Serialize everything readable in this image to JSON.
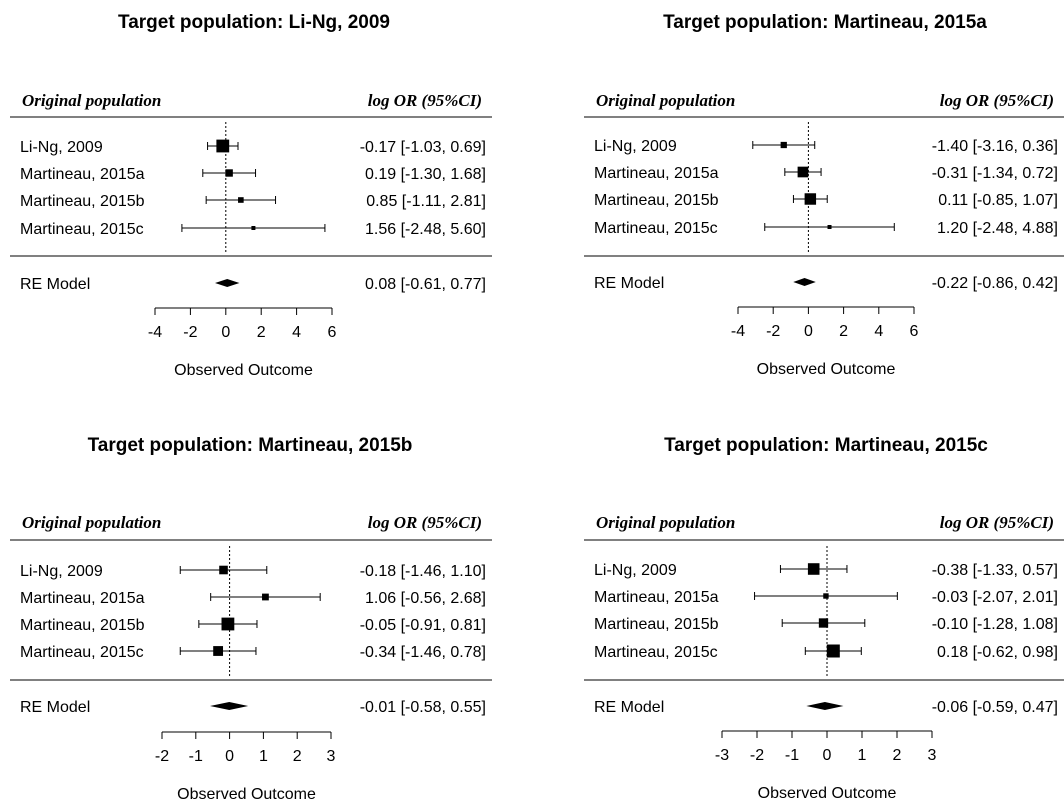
{
  "chart_data": [
    {
      "type": "forest",
      "title": "Target population: Li-Ng, 2009",
      "column_left_header": "Original population",
      "column_right_header": "log OR (95%CI)",
      "xlabel": "Observed Outcome",
      "xlim": [
        -4,
        6
      ],
      "xticks": [
        -4,
        -2,
        0,
        2,
        4,
        6
      ],
      "studies": [
        {
          "label": "Li-Ng, 2009",
          "estimate": -0.17,
          "lower": -1.03,
          "upper": 0.69,
          "text": "-0.17 [-1.03, 0.69]"
        },
        {
          "label": "Martineau, 2015a",
          "estimate": 0.19,
          "lower": -1.3,
          "upper": 1.68,
          "text": "0.19 [-1.30, 1.68]"
        },
        {
          "label": "Martineau, 2015b",
          "estimate": 0.85,
          "lower": -1.11,
          "upper": 2.81,
          "text": "0.85 [-1.11, 2.81]"
        },
        {
          "label": "Martineau, 2015c",
          "estimate": 1.56,
          "lower": -2.48,
          "upper": 5.6,
          "text": "1.56 [-2.48, 5.60]"
        }
      ],
      "summary": {
        "label": "RE Model",
        "estimate": 0.08,
        "lower": -0.61,
        "upper": 0.77,
        "text": "0.08 [-0.61, 0.77]"
      }
    },
    {
      "type": "forest",
      "title": "Target population: Martineau, 2015a",
      "column_left_header": "Original population",
      "column_right_header": "log OR (95%CI)",
      "xlabel": "Observed Outcome",
      "xlim": [
        -4,
        6
      ],
      "xticks": [
        -4,
        -2,
        0,
        2,
        4,
        6
      ],
      "studies": [
        {
          "label": "Li-Ng, 2009",
          "estimate": -1.4,
          "lower": -3.16,
          "upper": 0.36,
          "text": "-1.40 [-3.16, 0.36]"
        },
        {
          "label": "Martineau, 2015a",
          "estimate": -0.31,
          "lower": -1.34,
          "upper": 0.72,
          "text": "-0.31 [-1.34, 0.72]"
        },
        {
          "label": "Martineau, 2015b",
          "estimate": 0.11,
          "lower": -0.85,
          "upper": 1.07,
          "text": "0.11 [-0.85, 1.07]"
        },
        {
          "label": "Martineau, 2015c",
          "estimate": 1.2,
          "lower": -2.48,
          "upper": 4.88,
          "text": "1.20 [-2.48, 4.88]"
        }
      ],
      "summary": {
        "label": "RE Model",
        "estimate": -0.22,
        "lower": -0.86,
        "upper": 0.42,
        "text": "-0.22 [-0.86, 0.42]"
      }
    },
    {
      "type": "forest",
      "title": "Target population: Martineau, 2015b",
      "column_left_header": "Original population",
      "column_right_header": "log OR (95%CI)",
      "xlabel": "Observed Outcome",
      "xlim": [
        -2,
        3
      ],
      "xticks": [
        -2,
        -1,
        0,
        1,
        2,
        3
      ],
      "studies": [
        {
          "label": "Li-Ng, 2009",
          "estimate": -0.18,
          "lower": -1.46,
          "upper": 1.1,
          "text": "-0.18 [-1.46, 1.10]"
        },
        {
          "label": "Martineau, 2015a",
          "estimate": 1.06,
          "lower": -0.56,
          "upper": 2.68,
          "text": "1.06 [-0.56, 2.68]"
        },
        {
          "label": "Martineau, 2015b",
          "estimate": -0.05,
          "lower": -0.91,
          "upper": 0.81,
          "text": "-0.05 [-0.91, 0.81]"
        },
        {
          "label": "Martineau, 2015c",
          "estimate": -0.34,
          "lower": -1.46,
          "upper": 0.78,
          "text": "-0.34 [-1.46, 0.78]"
        }
      ],
      "summary": {
        "label": "RE Model",
        "estimate": -0.01,
        "lower": -0.58,
        "upper": 0.55,
        "text": "-0.01 [-0.58, 0.55]"
      }
    },
    {
      "type": "forest",
      "title": "Target population: Martineau, 2015c",
      "column_left_header": "Original population",
      "column_right_header": "log OR (95%CI)",
      "xlabel": "Observed Outcome",
      "xlim": [
        -3,
        3
      ],
      "xticks": [
        -3,
        -2,
        -1,
        0,
        1,
        2,
        3
      ],
      "studies": [
        {
          "label": "Li-Ng, 2009",
          "estimate": -0.38,
          "lower": -1.33,
          "upper": 0.57,
          "text": "-0.38 [-1.33, 0.57]"
        },
        {
          "label": "Martineau, 2015a",
          "estimate": -0.03,
          "lower": -2.07,
          "upper": 2.01,
          "text": "-0.03 [-2.07, 2.01]"
        },
        {
          "label": "Martineau, 2015b",
          "estimate": -0.1,
          "lower": -1.28,
          "upper": 1.08,
          "text": "-0.10 [-1.28, 1.08]"
        },
        {
          "label": "Martineau, 2015c",
          "estimate": 0.18,
          "lower": -0.62,
          "upper": 0.98,
          "text": "0.18 [-0.62, 0.98]"
        }
      ],
      "summary": {
        "label": "RE Model",
        "estimate": -0.06,
        "lower": -0.59,
        "upper": 0.47,
        "text": "-0.06 [-0.59, 0.47]"
      }
    }
  ]
}
